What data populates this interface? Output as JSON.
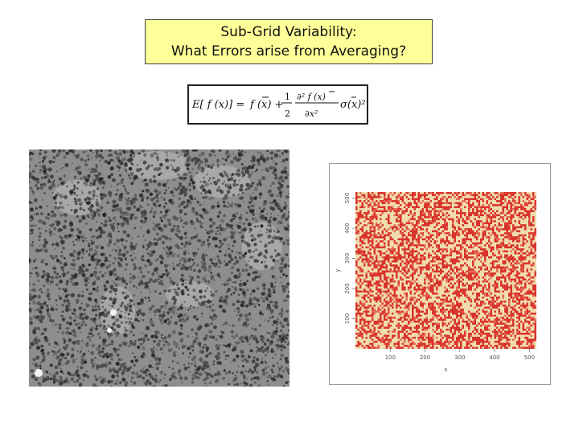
{
  "title": {
    "line1": "Sub-Grid Variability:",
    "line2": "What Errors arise from Averaging?"
  },
  "equation": {
    "lhs": "E[ f (x)] =",
    "term1": "f (x) +",
    "half_num": "1",
    "half_den": "2",
    "deriv_num": "∂² f (x)",
    "deriv_den": "∂x²",
    "sigma": "σ(x)²",
    "latex": "E[f(x)] = f(\\bar{x}) + \\frac{1}{2}\\frac{\\partial^2 f(\\bar{x})}{\\partial x^2}\\sigma(\\bar{x})^2"
  },
  "aerial_photo": {
    "description_icon": "aerial-forest-photo"
  },
  "chart_data": {
    "type": "heatmap",
    "xlabel": "x",
    "ylabel": "y",
    "xlim": [
      0,
      520
    ],
    "ylim": [
      0,
      520
    ],
    "x_ticks": [
      100,
      200,
      300,
      400,
      500
    ],
    "y_ticks": [
      100,
      200,
      300,
      400,
      500
    ],
    "colors": [
      "#d9342b",
      "#f0dcae"
    ]
  }
}
